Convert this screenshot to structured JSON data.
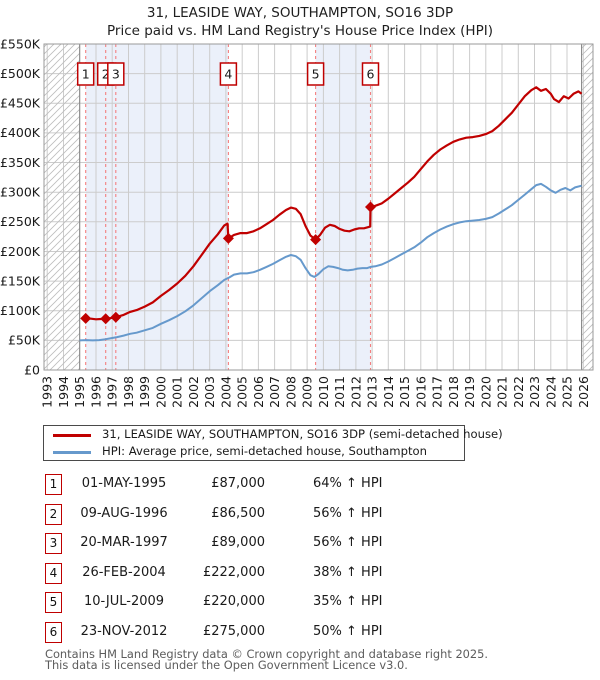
{
  "title": "31, LEASIDE WAY, SOUTHAMPTON, SO16 3DP",
  "subtitle": "Price paid vs. HM Land Registry's House Price Index (HPI)",
  "legend": {
    "series": [
      {
        "label": "31, LEASIDE WAY, SOUTHAMPTON, SO16 3DP (semi-detached house)",
        "color": "#c00000"
      },
      {
        "label": "HPI: Average price, semi-detached house, Southampton",
        "color": "#6699cc"
      }
    ]
  },
  "transactions": [
    {
      "num": "1",
      "date": "01-MAY-1995",
      "price": "£87,000",
      "hpi": "64% ↑ HPI"
    },
    {
      "num": "2",
      "date": "09-AUG-1996",
      "price": "£86,500",
      "hpi": "56% ↑ HPI"
    },
    {
      "num": "3",
      "date": "20-MAR-1997",
      "price": "£89,000",
      "hpi": "56% ↑ HPI"
    },
    {
      "num": "4",
      "date": "26-FEB-2004",
      "price": "£222,000",
      "hpi": "38% ↑ HPI"
    },
    {
      "num": "5",
      "date": "10-JUL-2009",
      "price": "£220,000",
      "hpi": "35% ↑ HPI"
    },
    {
      "num": "6",
      "date": "23-NOV-2012",
      "price": "£275,000",
      "hpi": "50% ↑ HPI"
    }
  ],
  "footer": {
    "line1": "Contains HM Land Registry data © Crown copyright and database right 2025.",
    "line2": "This data is licensed under the Open Government Licence v3.0."
  },
  "colors": {
    "price_line": "#c00000",
    "hpi_line": "#6699cc",
    "dashed_marker": "#f47f7f",
    "ownership_band": "#ebf0fa",
    "grid": "#cccccc",
    "hatch": "#bdbdbd",
    "plot_border": "#9a9a9a",
    "data_edge": "#808080",
    "marker_box_border": "#bf0000"
  },
  "chart_data": {
    "type": "line",
    "title": "31, LEASIDE WAY, SOUTHAMPTON, SO16 3DP",
    "subtitle": "Price paid vs. HM Land Registry's House Price Index (HPI)",
    "xlabel": "",
    "ylabel": "",
    "units": "GBP thousands",
    "x_domain": [
      1992.8,
      2026.6
    ],
    "ylim": [
      0,
      550
    ],
    "x_ticks": [
      1993,
      1994,
      1995,
      1996,
      1997,
      1998,
      1999,
      2000,
      2001,
      2002,
      2003,
      2004,
      2005,
      2006,
      2007,
      2008,
      2009,
      2010,
      2011,
      2012,
      2013,
      2014,
      2015,
      2016,
      2017,
      2018,
      2019,
      2020,
      2021,
      2022,
      2023,
      2024,
      2025,
      2026
    ],
    "y_ticks": [
      {
        "v": 0,
        "label": "£0"
      },
      {
        "v": 50,
        "label": "£50K"
      },
      {
        "v": 100,
        "label": "£100K"
      },
      {
        "v": 150,
        "label": "£150K"
      },
      {
        "v": 200,
        "label": "£200K"
      },
      {
        "v": 250,
        "label": "£250K"
      },
      {
        "v": 300,
        "label": "£300K"
      },
      {
        "v": 350,
        "label": "£350K"
      },
      {
        "v": 400,
        "label": "£400K"
      },
      {
        "v": 450,
        "label": "£450K"
      },
      {
        "v": 500,
        "label": "£500K"
      },
      {
        "v": 550,
        "label": "£550K"
      }
    ],
    "grid": true,
    "legend_position": "below",
    "no_data_hatch": [
      [
        1992.8,
        1995.0
      ],
      [
        2025.9,
        2026.6
      ]
    ],
    "ownership_bands": [
      [
        1995.37,
        2004.15
      ],
      [
        2009.52,
        2012.9
      ]
    ],
    "markers": [
      {
        "n": "1",
        "year": 1995.37,
        "value": 87
      },
      {
        "n": "2",
        "year": 1996.6,
        "value": 86.5
      },
      {
        "n": "3",
        "year": 1997.22,
        "value": 89
      },
      {
        "n": "4",
        "year": 2004.15,
        "value": 222
      },
      {
        "n": "5",
        "year": 2009.52,
        "value": 220
      },
      {
        "n": "6",
        "year": 2012.9,
        "value": 275
      }
    ],
    "series": [
      {
        "name": "31, LEASIDE WAY, SOUTHAMPTON, SO16 3DP (semi-detached house)",
        "color": "#c00000",
        "points": [
          [
            1995.37,
            87
          ],
          [
            1995.7,
            86.5
          ],
          [
            1996.0,
            85.5
          ],
          [
            1996.3,
            86
          ],
          [
            1996.6,
            86.5
          ],
          [
            1996.9,
            87.5
          ],
          [
            1997.22,
            89
          ],
          [
            1997.7,
            93
          ],
          [
            1998.1,
            98
          ],
          [
            1998.5,
            101
          ],
          [
            1999.0,
            107
          ],
          [
            1999.5,
            114
          ],
          [
            2000.0,
            125
          ],
          [
            2000.5,
            135
          ],
          [
            2001.0,
            146
          ],
          [
            2001.5,
            159
          ],
          [
            2002.0,
            175
          ],
          [
            2002.5,
            194
          ],
          [
            2003.0,
            213
          ],
          [
            2003.5,
            229
          ],
          [
            2003.9,
            244
          ],
          [
            2004.1,
            247
          ],
          [
            2004.15,
            222
          ],
          [
            2004.5,
            228
          ],
          [
            2004.9,
            231
          ],
          [
            2005.3,
            231
          ],
          [
            2005.7,
            234
          ],
          [
            2006.1,
            239
          ],
          [
            2006.5,
            246
          ],
          [
            2006.9,
            253
          ],
          [
            2007.3,
            262
          ],
          [
            2007.7,
            270
          ],
          [
            2008.0,
            274
          ],
          [
            2008.3,
            272
          ],
          [
            2008.6,
            263
          ],
          [
            2008.9,
            243
          ],
          [
            2009.2,
            227
          ],
          [
            2009.52,
            220
          ],
          [
            2009.8,
            228
          ],
          [
            2010.1,
            240
          ],
          [
            2010.4,
            245
          ],
          [
            2010.7,
            243
          ],
          [
            2011.0,
            238
          ],
          [
            2011.3,
            235
          ],
          [
            2011.6,
            234
          ],
          [
            2011.9,
            237
          ],
          [
            2012.2,
            239
          ],
          [
            2012.5,
            239
          ],
          [
            2012.88,
            242
          ],
          [
            2012.9,
            275
          ],
          [
            2013.2,
            277
          ],
          [
            2013.6,
            281
          ],
          [
            2014.0,
            289
          ],
          [
            2014.4,
            298
          ],
          [
            2014.8,
            307
          ],
          [
            2015.2,
            316
          ],
          [
            2015.6,
            326
          ],
          [
            2016.0,
            339
          ],
          [
            2016.4,
            352
          ],
          [
            2016.8,
            363
          ],
          [
            2017.2,
            372
          ],
          [
            2017.6,
            379
          ],
          [
            2018.0,
            385
          ],
          [
            2018.4,
            389
          ],
          [
            2018.8,
            392
          ],
          [
            2019.2,
            393
          ],
          [
            2019.6,
            395
          ],
          [
            2020.0,
            398
          ],
          [
            2020.4,
            403
          ],
          [
            2020.8,
            412
          ],
          [
            2021.2,
            423
          ],
          [
            2021.6,
            434
          ],
          [
            2022.0,
            448
          ],
          [
            2022.4,
            462
          ],
          [
            2022.8,
            472
          ],
          [
            2023.1,
            477
          ],
          [
            2023.4,
            471
          ],
          [
            2023.7,
            474
          ],
          [
            2024.0,
            466
          ],
          [
            2024.2,
            457
          ],
          [
            2024.5,
            452
          ],
          [
            2024.8,
            462
          ],
          [
            2025.1,
            458
          ],
          [
            2025.4,
            466
          ],
          [
            2025.7,
            470
          ],
          [
            2025.9,
            466
          ]
        ]
      },
      {
        "name": "HPI: Average price, semi-detached house, Southampton",
        "color": "#6699cc",
        "points": [
          [
            1995.0,
            50
          ],
          [
            1995.4,
            50.5
          ],
          [
            1995.8,
            50
          ],
          [
            1996.2,
            50.5
          ],
          [
            1996.6,
            52
          ],
          [
            1997.0,
            54
          ],
          [
            1997.3,
            55.5
          ],
          [
            1997.7,
            58
          ],
          [
            1998.1,
            61
          ],
          [
            1998.5,
            63
          ],
          [
            1999.0,
            67
          ],
          [
            1999.5,
            71
          ],
          [
            2000.0,
            78
          ],
          [
            2000.5,
            84
          ],
          [
            2001.0,
            91
          ],
          [
            2001.5,
            99
          ],
          [
            2002.0,
            109
          ],
          [
            2002.5,
            121
          ],
          [
            2003.0,
            133
          ],
          [
            2003.5,
            143
          ],
          [
            2003.9,
            152
          ],
          [
            2004.2,
            156
          ],
          [
            2004.5,
            161
          ],
          [
            2004.9,
            163
          ],
          [
            2005.3,
            163
          ],
          [
            2005.7,
            165
          ],
          [
            2006.1,
            169
          ],
          [
            2006.5,
            174
          ],
          [
            2006.9,
            179
          ],
          [
            2007.3,
            185
          ],
          [
            2007.7,
            191
          ],
          [
            2008.0,
            194
          ],
          [
            2008.3,
            192
          ],
          [
            2008.6,
            186
          ],
          [
            2008.9,
            172
          ],
          [
            2009.2,
            160
          ],
          [
            2009.45,
            157
          ],
          [
            2009.7,
            162
          ],
          [
            2010.0,
            170
          ],
          [
            2010.3,
            175
          ],
          [
            2010.6,
            174
          ],
          [
            2010.9,
            172
          ],
          [
            2011.2,
            169
          ],
          [
            2011.5,
            168
          ],
          [
            2011.8,
            169
          ],
          [
            2012.1,
            171
          ],
          [
            2012.4,
            172
          ],
          [
            2012.7,
            172
          ],
          [
            2012.9,
            174
          ],
          [
            2013.2,
            175
          ],
          [
            2013.6,
            178
          ],
          [
            2014.0,
            183
          ],
          [
            2014.4,
            189
          ],
          [
            2014.8,
            195
          ],
          [
            2015.2,
            201
          ],
          [
            2015.6,
            207
          ],
          [
            2016.0,
            215
          ],
          [
            2016.4,
            224
          ],
          [
            2016.8,
            231
          ],
          [
            2017.2,
            237
          ],
          [
            2017.6,
            242
          ],
          [
            2018.0,
            246
          ],
          [
            2018.4,
            249
          ],
          [
            2018.8,
            251
          ],
          [
            2019.2,
            252
          ],
          [
            2019.6,
            253
          ],
          [
            2020.0,
            255
          ],
          [
            2020.4,
            258
          ],
          [
            2020.8,
            264
          ],
          [
            2021.2,
            271
          ],
          [
            2021.6,
            278
          ],
          [
            2022.0,
            287
          ],
          [
            2022.4,
            296
          ],
          [
            2022.8,
            305
          ],
          [
            2023.1,
            312
          ],
          [
            2023.4,
            314
          ],
          [
            2023.7,
            309
          ],
          [
            2024.0,
            303
          ],
          [
            2024.3,
            299
          ],
          [
            2024.6,
            304
          ],
          [
            2024.9,
            307
          ],
          [
            2025.2,
            303
          ],
          [
            2025.5,
            308
          ],
          [
            2025.9,
            311
          ]
        ]
      }
    ]
  }
}
